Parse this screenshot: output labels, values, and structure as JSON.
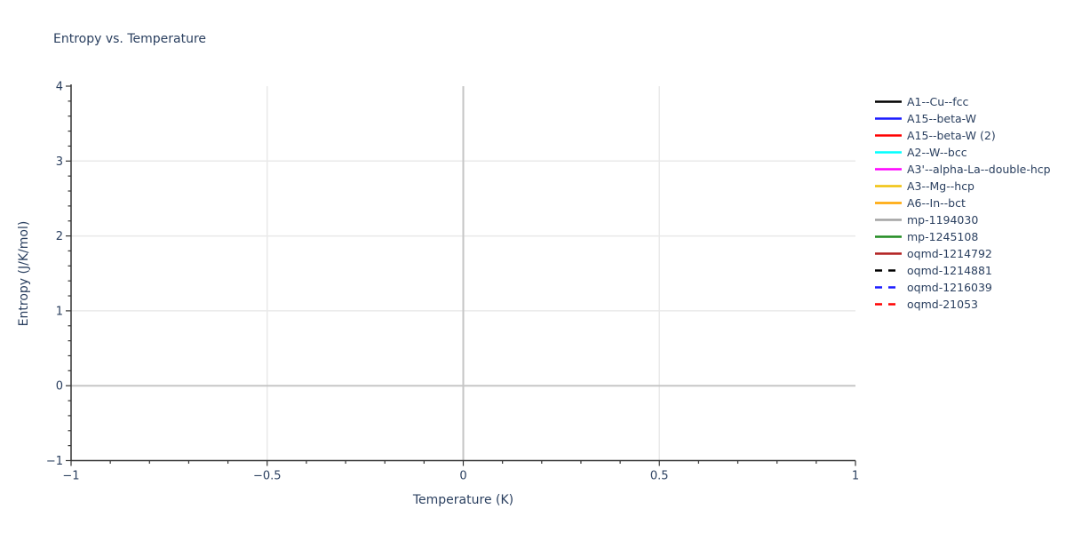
{
  "title": "Entropy vs. Temperature",
  "colors": {
    "text": "#2a3f5f",
    "grid": "#e9e9e9",
    "zeroline": "#c6c6c6",
    "axis": "#333333"
  },
  "chart_data": {
    "type": "line",
    "title": "Entropy vs. Temperature",
    "xlabel": "Temperature (K)",
    "ylabel": "Entropy (J/K/mol)",
    "xlim": [
      -1,
      1
    ],
    "ylim": [
      -1,
      4
    ],
    "x_ticks": [
      -1,
      -0.5,
      0,
      0.5,
      1
    ],
    "x_tick_labels": [
      "−1",
      "−0.5",
      "0",
      "0.5",
      "1"
    ],
    "x_minor_step": 0.1,
    "y_ticks": [
      -1,
      0,
      1,
      2,
      3,
      4
    ],
    "y_tick_labels": [
      "−1",
      "0",
      "1",
      "2",
      "3",
      "4"
    ],
    "y_minor_step": 0.2,
    "grid": true,
    "zerolines": true,
    "legend_position": "right",
    "series": [
      {
        "name": "A1--Cu--fcc",
        "color": "#000000",
        "dash": "solid",
        "x": [],
        "values": []
      },
      {
        "name": "A15--beta-W",
        "color": "#1a1aff",
        "dash": "solid",
        "x": [],
        "values": []
      },
      {
        "name": "A15--beta-W (2)",
        "color": "#ff0000",
        "dash": "solid",
        "x": [],
        "values": []
      },
      {
        "name": "A2--W--bcc",
        "color": "#00ffff",
        "dash": "solid",
        "x": [],
        "values": []
      },
      {
        "name": "A3'--alpha-La--double-hcp",
        "color": "#ff00ff",
        "dash": "solid",
        "x": [],
        "values": []
      },
      {
        "name": "A3--Mg--hcp",
        "color": "#f0c20c",
        "dash": "solid",
        "x": [],
        "values": []
      },
      {
        "name": "A6--In--bct",
        "color": "#ffa500",
        "dash": "solid",
        "x": [],
        "values": []
      },
      {
        "name": "mp-1194030",
        "color": "#a3a3a3",
        "dash": "solid",
        "x": [],
        "values": []
      },
      {
        "name": "mp-1245108",
        "color": "#228b22",
        "dash": "solid",
        "x": [],
        "values": []
      },
      {
        "name": "oqmd-1214792",
        "color": "#b22222",
        "dash": "solid",
        "x": [],
        "values": []
      },
      {
        "name": "oqmd-1214881",
        "color": "#000000",
        "dash": "dashed",
        "x": [],
        "values": []
      },
      {
        "name": "oqmd-1216039",
        "color": "#1a1aff",
        "dash": "dashed",
        "x": [],
        "values": []
      },
      {
        "name": "oqmd-21053",
        "color": "#ff0000",
        "dash": "dashed",
        "x": [],
        "values": []
      }
    ]
  }
}
